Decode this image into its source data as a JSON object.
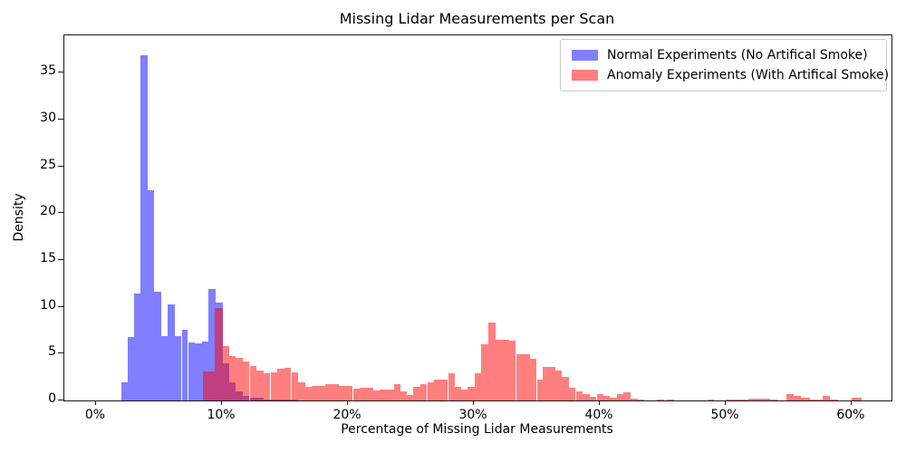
{
  "title": "Missing Lidar Measurements per Scan",
  "x_axis": {
    "label": "Percentage of Missing Lidar Measurements",
    "tick_values": [
      0,
      10,
      20,
      30,
      40,
      50,
      60
    ],
    "tick_labels": [
      "0%",
      "10%",
      "20%",
      "30%",
      "40%",
      "50%",
      "60%"
    ]
  },
  "y_axis": {
    "label": "Density",
    "tick_values": [
      0,
      5,
      10,
      15,
      20,
      25,
      30,
      35
    ],
    "tick_labels": [
      "0",
      "5",
      "10",
      "15",
      "20",
      "25",
      "30",
      "35"
    ]
  },
  "legend": {
    "items": [
      {
        "label": "Normal Experiments (No Artifical Smoke)",
        "swatch_color": "rgba(0,0,255,0.5)"
      },
      {
        "label": "Anomaly Experiments (With Artifical Smoke)",
        "swatch_color": "rgba(255,0,0,0.5)"
      }
    ]
  },
  "chart_data": {
    "type": "bar",
    "subtype": "overlaid-histogram",
    "title": "Missing Lidar Measurements per Scan",
    "xlabel": "Percentage of Missing Lidar Measurements",
    "ylabel": "Density",
    "xlim": [
      -2.52,
      63.17
    ],
    "ylim": [
      0,
      39.0
    ],
    "grid": false,
    "legend_position": "upper right",
    "x_unit": "percent",
    "series": [
      {
        "name": "Normal Experiments (No Artifical Smoke)",
        "color": "#0000ff",
        "alpha": 0.5,
        "css_class": "normal",
        "bars_pct_start_end_density": [
          [
            2.0,
            2.5,
            1.9
          ],
          [
            2.5,
            3.0,
            6.8
          ],
          [
            3.0,
            3.55,
            11.4
          ],
          [
            3.55,
            4.1,
            36.9
          ],
          [
            4.1,
            4.6,
            22.5
          ],
          [
            4.6,
            5.15,
            11.6
          ],
          [
            5.15,
            5.7,
            6.9
          ],
          [
            5.7,
            6.25,
            10.3
          ],
          [
            6.25,
            6.8,
            6.9
          ],
          [
            6.8,
            7.3,
            7.6
          ],
          [
            7.3,
            7.85,
            6.2
          ],
          [
            7.85,
            8.4,
            6.1
          ],
          [
            8.4,
            8.95,
            6.3
          ],
          [
            8.95,
            9.5,
            11.9
          ],
          [
            9.5,
            10.05,
            10.5
          ],
          [
            10.05,
            10.6,
            4.0
          ],
          [
            10.6,
            11.1,
            1.9
          ],
          [
            11.1,
            11.65,
            1.0
          ],
          [
            11.65,
            12.2,
            0.45
          ],
          [
            12.2,
            13.3,
            0.25
          ],
          [
            13.3,
            14.4,
            0.12
          ],
          [
            14.4,
            16.0,
            0.06
          ]
        ]
      },
      {
        "name": "Anomaly Experiments (With Artifical Smoke)",
        "color": "#ff0000",
        "alpha": 0.5,
        "css_class": "anomaly",
        "bars_pct_start_end_density": [
          [
            8.5,
            9.4,
            3.1
          ],
          [
            9.4,
            10.05,
            9.9
          ],
          [
            10.05,
            10.6,
            5.8
          ],
          [
            10.6,
            11.1,
            4.7
          ],
          [
            11.1,
            11.65,
            4.6
          ],
          [
            11.65,
            12.2,
            4.2
          ],
          [
            12.2,
            12.75,
            3.7
          ],
          [
            12.75,
            13.3,
            3.2
          ],
          [
            13.3,
            13.85,
            2.9
          ],
          [
            13.85,
            14.4,
            3.0
          ],
          [
            14.4,
            14.95,
            3.4
          ],
          [
            14.95,
            15.5,
            3.5
          ],
          [
            15.5,
            16.05,
            3.0
          ],
          [
            16.05,
            16.6,
            1.9
          ],
          [
            16.6,
            17.1,
            1.5
          ],
          [
            17.1,
            17.65,
            1.6
          ],
          [
            17.65,
            18.2,
            1.6
          ],
          [
            18.2,
            18.75,
            1.7
          ],
          [
            18.75,
            19.3,
            1.7
          ],
          [
            19.3,
            19.85,
            1.6
          ],
          [
            19.85,
            20.4,
            1.6
          ],
          [
            20.4,
            20.95,
            1.3
          ],
          [
            20.95,
            21.5,
            1.4
          ],
          [
            21.5,
            22.0,
            1.4
          ],
          [
            22.0,
            22.55,
            1.1
          ],
          [
            22.55,
            23.1,
            1.2
          ],
          [
            23.1,
            23.65,
            1.2
          ],
          [
            23.65,
            24.2,
            1.7
          ],
          [
            24.2,
            24.7,
            1.0
          ],
          [
            24.7,
            25.2,
            0.6
          ],
          [
            25.2,
            25.75,
            1.45
          ],
          [
            25.75,
            26.3,
            1.7
          ],
          [
            26.3,
            26.85,
            1.9
          ],
          [
            26.85,
            27.4,
            2.2
          ],
          [
            27.4,
            27.95,
            2.2
          ],
          [
            27.95,
            28.5,
            2.9
          ],
          [
            28.5,
            29.0,
            1.45
          ],
          [
            29.0,
            29.5,
            1.2
          ],
          [
            29.5,
            30.05,
            1.45
          ],
          [
            30.05,
            30.6,
            2.9
          ],
          [
            30.6,
            31.15,
            6.0
          ],
          [
            31.15,
            31.7,
            8.3
          ],
          [
            31.7,
            32.25,
            6.45
          ],
          [
            32.25,
            32.8,
            6.45
          ],
          [
            32.8,
            33.35,
            6.35
          ],
          [
            33.35,
            33.9,
            4.9
          ],
          [
            33.9,
            34.45,
            4.9
          ],
          [
            34.45,
            35.0,
            4.5
          ],
          [
            35.0,
            35.5,
            2.25
          ],
          [
            35.5,
            36.0,
            3.55
          ],
          [
            36.0,
            36.5,
            3.55
          ],
          [
            36.5,
            37.0,
            3.2
          ],
          [
            37.0,
            37.55,
            2.5
          ],
          [
            37.55,
            38.1,
            1.35
          ],
          [
            38.1,
            38.65,
            0.95
          ],
          [
            38.65,
            39.2,
            0.65
          ],
          [
            39.2,
            39.75,
            0.4
          ],
          [
            39.75,
            40.3,
            0.65
          ],
          [
            40.3,
            40.8,
            0.5
          ],
          [
            40.8,
            41.35,
            0.26
          ],
          [
            41.35,
            41.9,
            0.65
          ],
          [
            41.9,
            42.45,
            0.85
          ],
          [
            42.45,
            43.0,
            0.16
          ],
          [
            43.0,
            43.5,
            0.06
          ],
          [
            44.5,
            45.1,
            0.08
          ],
          [
            45.3,
            45.9,
            0.12
          ],
          [
            48.6,
            49.1,
            0.1
          ],
          [
            50.0,
            51.8,
            0.12
          ],
          [
            51.8,
            52.9,
            0.23
          ],
          [
            52.9,
            53.5,
            0.15
          ],
          [
            53.5,
            54.1,
            0.1
          ],
          [
            54.8,
            55.4,
            0.7
          ],
          [
            55.4,
            56.0,
            0.5
          ],
          [
            56.0,
            56.7,
            0.25
          ],
          [
            56.7,
            57.7,
            0.1
          ],
          [
            57.7,
            58.3,
            0.5
          ],
          [
            58.3,
            58.9,
            0.12
          ],
          [
            60.0,
            60.8,
            0.28
          ]
        ]
      }
    ]
  }
}
